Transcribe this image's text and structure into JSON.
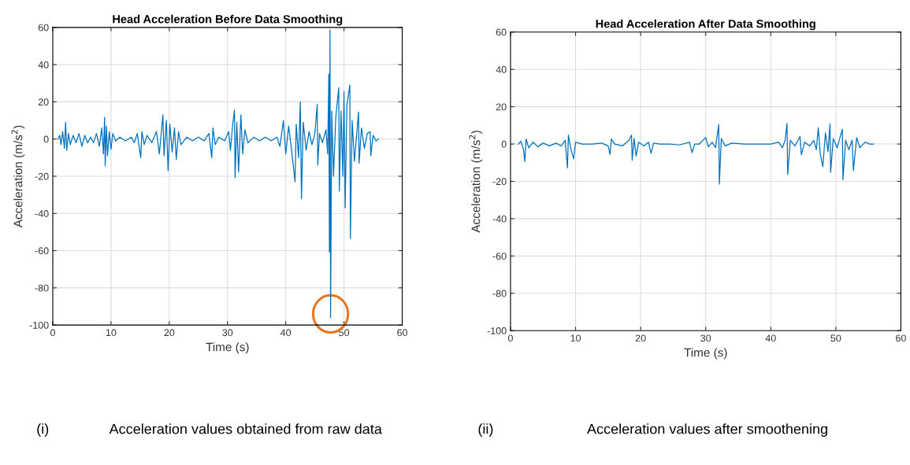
{
  "chart_data": [
    {
      "type": "line",
      "title": "Head Acceleration Before Data Smoothing",
      "xlabel": "Time (s)",
      "ylabel": "Acceleration (m/s$^{2}$)",
      "xlim": [
        0,
        60
      ],
      "xticks": [
        0,
        10,
        20,
        30,
        40,
        50,
        60
      ],
      "ylim": [
        -100,
        60
      ],
      "yticks": [
        -100,
        -80,
        -60,
        -40,
        -20,
        0,
        20,
        40,
        60
      ],
      "grid": true,
      "annotations": [
        "(i)",
        "Acceleration values obtained from raw data"
      ],
      "series": [
        {
          "color": "#0072bd",
          "x": [
            0.9,
            1.2,
            1.4,
            1.7,
            2.0,
            2.2,
            2.4,
            2.7,
            3.0,
            3.5,
            4.0,
            4.5,
            5.0,
            5.5,
            6.0,
            6.5,
            7.0,
            7.5,
            8.0,
            8.4,
            8.7,
            8.9,
            9.0,
            9.2,
            9.4,
            9.7,
            10.0,
            10.3,
            10.8,
            11.5,
            12.5,
            13.5,
            14.0,
            14.5,
            15.1,
            15.3,
            15.7,
            16.2,
            17.0,
            17.8,
            18.3,
            18.9,
            19.1,
            19.5,
            19.8,
            20.1,
            20.5,
            20.9,
            21.2,
            21.6,
            22.0,
            23,
            24,
            25,
            26,
            26.8,
            27.3,
            27.5,
            27.9,
            28.5,
            29.5,
            30.2,
            30.5,
            30.9,
            31.2,
            31.3,
            31.6,
            31.9,
            32.3,
            32.6,
            33.0,
            33.5,
            34.5,
            35.5,
            36.5,
            37.5,
            38.5,
            39.0,
            39.6,
            40.0,
            40.5,
            41.0,
            41.6,
            41.8,
            42.2,
            42.5,
            42.7,
            43.0,
            43.5,
            44.0,
            44.5,
            45.0,
            45.4,
            45.5,
            45.8,
            46.3,
            46.9,
            47.2,
            47.4,
            47.5,
            47.6,
            47.7,
            47.9,
            48.2,
            48.6,
            49.1,
            49.2,
            49.5,
            49.8,
            50.0,
            50.2,
            50.5,
            51.0,
            51.1,
            51.4,
            51.8,
            52.5,
            52.6,
            53.0,
            53.5,
            54.0,
            54.5,
            54.6,
            55.0,
            55.5,
            55.9
          ],
          "values": [
            0,
            2,
            -3,
            4,
            -5,
            9,
            -6,
            3,
            -3,
            2,
            -2,
            3,
            -4,
            2,
            -2,
            1,
            -2,
            3,
            -4,
            6,
            -8,
            11.7,
            -14.5,
            7,
            -9,
            4,
            -5.5,
            3,
            -1,
            1,
            -1,
            1,
            -2,
            3,
            -10,
            4,
            -3,
            2,
            -2,
            4,
            -8,
            13,
            -9,
            10,
            -17,
            8,
            -7,
            6,
            -11,
            4,
            -3,
            1,
            -1,
            1,
            -1,
            3,
            -10,
            6,
            -3,
            1,
            -1,
            4,
            -6,
            8,
            15.5,
            -20.7,
            9,
            -17.7,
            13,
            -8,
            5,
            -2,
            1,
            -1,
            1,
            -1,
            1,
            -4,
            10,
            -8,
            7,
            -6,
            -23,
            8,
            -10,
            20,
            -32,
            9,
            -6,
            4,
            -3,
            3,
            18.6,
            -14,
            3,
            -2,
            5,
            -8,
            35,
            -60.7,
            58.6,
            -96,
            15,
            -20,
            12,
            27.6,
            -28,
            15,
            -20,
            25.5,
            -37,
            18,
            29,
            -53.5,
            10,
            -12,
            14.5,
            -13,
            6,
            -5,
            3,
            4,
            -9,
            2,
            -1,
            0
          ]
        }
      ]
    },
    {
      "type": "line",
      "title": "Head Acceleration After Data Smoothing",
      "xlabel": "Time (s)",
      "ylabel": "Acceleration (m/s$^{2}$)",
      "xlim": [
        0,
        60
      ],
      "xticks": [
        0,
        10,
        20,
        30,
        40,
        50,
        60
      ],
      "ylim": [
        -100,
        60
      ],
      "yticks": [
        -100,
        -80,
        -60,
        -40,
        -20,
        0,
        20,
        40,
        60
      ],
      "grid": true,
      "annotations": [
        "(ii)",
        "Acceleration values after smoothening"
      ],
      "series": [
        {
          "color": "#0072bd",
          "x": [
            1.2,
            1.6,
            2.0,
            2.2,
            2.4,
            2.8,
            3.5,
            4.2,
            5,
            6,
            7,
            7.8,
            8.4,
            8.75,
            8.9,
            9.3,
            9.7,
            10.0,
            11,
            12.5,
            14,
            15.0,
            15.3,
            15.5,
            16,
            17.2,
            18.2,
            18.6,
            18.7,
            19.0,
            19.3,
            19.7,
            20.5,
            21.2,
            21.6,
            22,
            23,
            24.5,
            26,
            27.5,
            27.9,
            28.3,
            29,
            30,
            30.4,
            31,
            31.5,
            32,
            32.1,
            32.4,
            33,
            34,
            36,
            38,
            40,
            41.2,
            41.8,
            42.2,
            42.5,
            42.6,
            43,
            43.7,
            44.5,
            44.7,
            45.2,
            46,
            46.6,
            47.0,
            47.3,
            47.6,
            48.0,
            48.4,
            48.8,
            49.1,
            49.2,
            49.6,
            50.2,
            51.0,
            51.1,
            51.5,
            52.0,
            52.5,
            52.7,
            53.2,
            53.7,
            54.5,
            55.2,
            55.8
          ],
          "values": [
            0,
            1.5,
            -3,
            -9.3,
            2.7,
            -2,
            1,
            -1.5,
            0.5,
            -1,
            0.5,
            -1,
            2,
            -12.8,
            4.8,
            -3,
            -7.9,
            1,
            0,
            0,
            0.5,
            -1,
            -5.5,
            2.7,
            0,
            -1,
            2,
            4.8,
            -8.6,
            3,
            -6.5,
            1,
            -1,
            1,
            -5,
            0.5,
            0,
            0,
            -0.5,
            1,
            -4.6,
            0,
            0,
            3.4,
            -1.5,
            1,
            -2,
            10.4,
            -21.5,
            3,
            -1,
            0.5,
            0,
            0,
            0,
            1,
            -2,
            2,
            11.1,
            -16.3,
            2,
            -1,
            4,
            -5.8,
            1,
            -1,
            2,
            -3,
            8.7,
            -5,
            -12.1,
            6,
            -4,
            10.8,
            -15.2,
            3,
            -2,
            8,
            -19.2,
            2,
            -3,
            2,
            -14.2,
            3.4,
            -2,
            1,
            0,
            0
          ]
        }
      ]
    }
  ]
}
